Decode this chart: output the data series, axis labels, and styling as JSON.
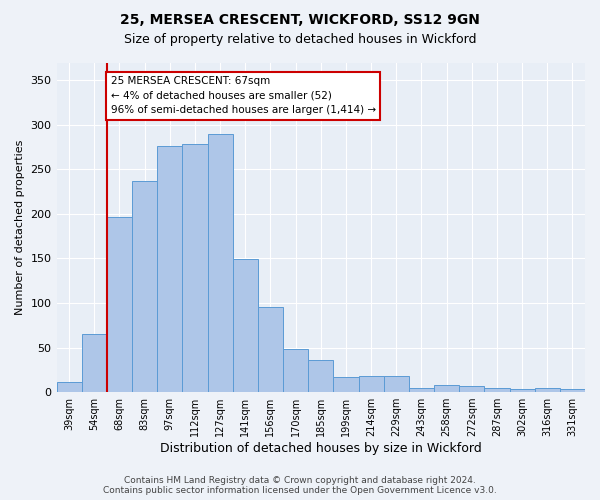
{
  "title1": "25, MERSEA CRESCENT, WICKFORD, SS12 9GN",
  "title2": "Size of property relative to detached houses in Wickford",
  "xlabel": "Distribution of detached houses by size in Wickford",
  "ylabel": "Number of detached properties",
  "categories": [
    "39sqm",
    "54sqm",
    "68sqm",
    "83sqm",
    "97sqm",
    "112sqm",
    "127sqm",
    "141sqm",
    "156sqm",
    "170sqm",
    "185sqm",
    "199sqm",
    "214sqm",
    "229sqm",
    "243sqm",
    "258sqm",
    "272sqm",
    "287sqm",
    "302sqm",
    "316sqm",
    "331sqm"
  ],
  "values": [
    11,
    65,
    197,
    237,
    276,
    278,
    290,
    149,
    95,
    48,
    36,
    17,
    18,
    18,
    5,
    8,
    7,
    5,
    3,
    5,
    3
  ],
  "bar_color": "#aec6e8",
  "bar_edge_color": "#5b9bd5",
  "vline_x": 1.5,
  "marker_label": "25 MERSEA CRESCENT: 67sqm",
  "marker_smaller": "← 4% of detached houses are smaller (52)",
  "marker_larger": "96% of semi-detached houses are larger (1,414) →",
  "vline_color": "#cc0000",
  "annotation_box_color": "#ffffff",
  "annotation_box_edge": "#cc0000",
  "footer1": "Contains HM Land Registry data © Crown copyright and database right 2024.",
  "footer2": "Contains public sector information licensed under the Open Government Licence v3.0.",
  "bg_color": "#eef2f8",
  "plot_bg_color": "#e8eef6",
  "grid_color": "#ffffff",
  "ylim": [
    0,
    370
  ],
  "yticks": [
    0,
    50,
    100,
    150,
    200,
    250,
    300,
    350
  ]
}
